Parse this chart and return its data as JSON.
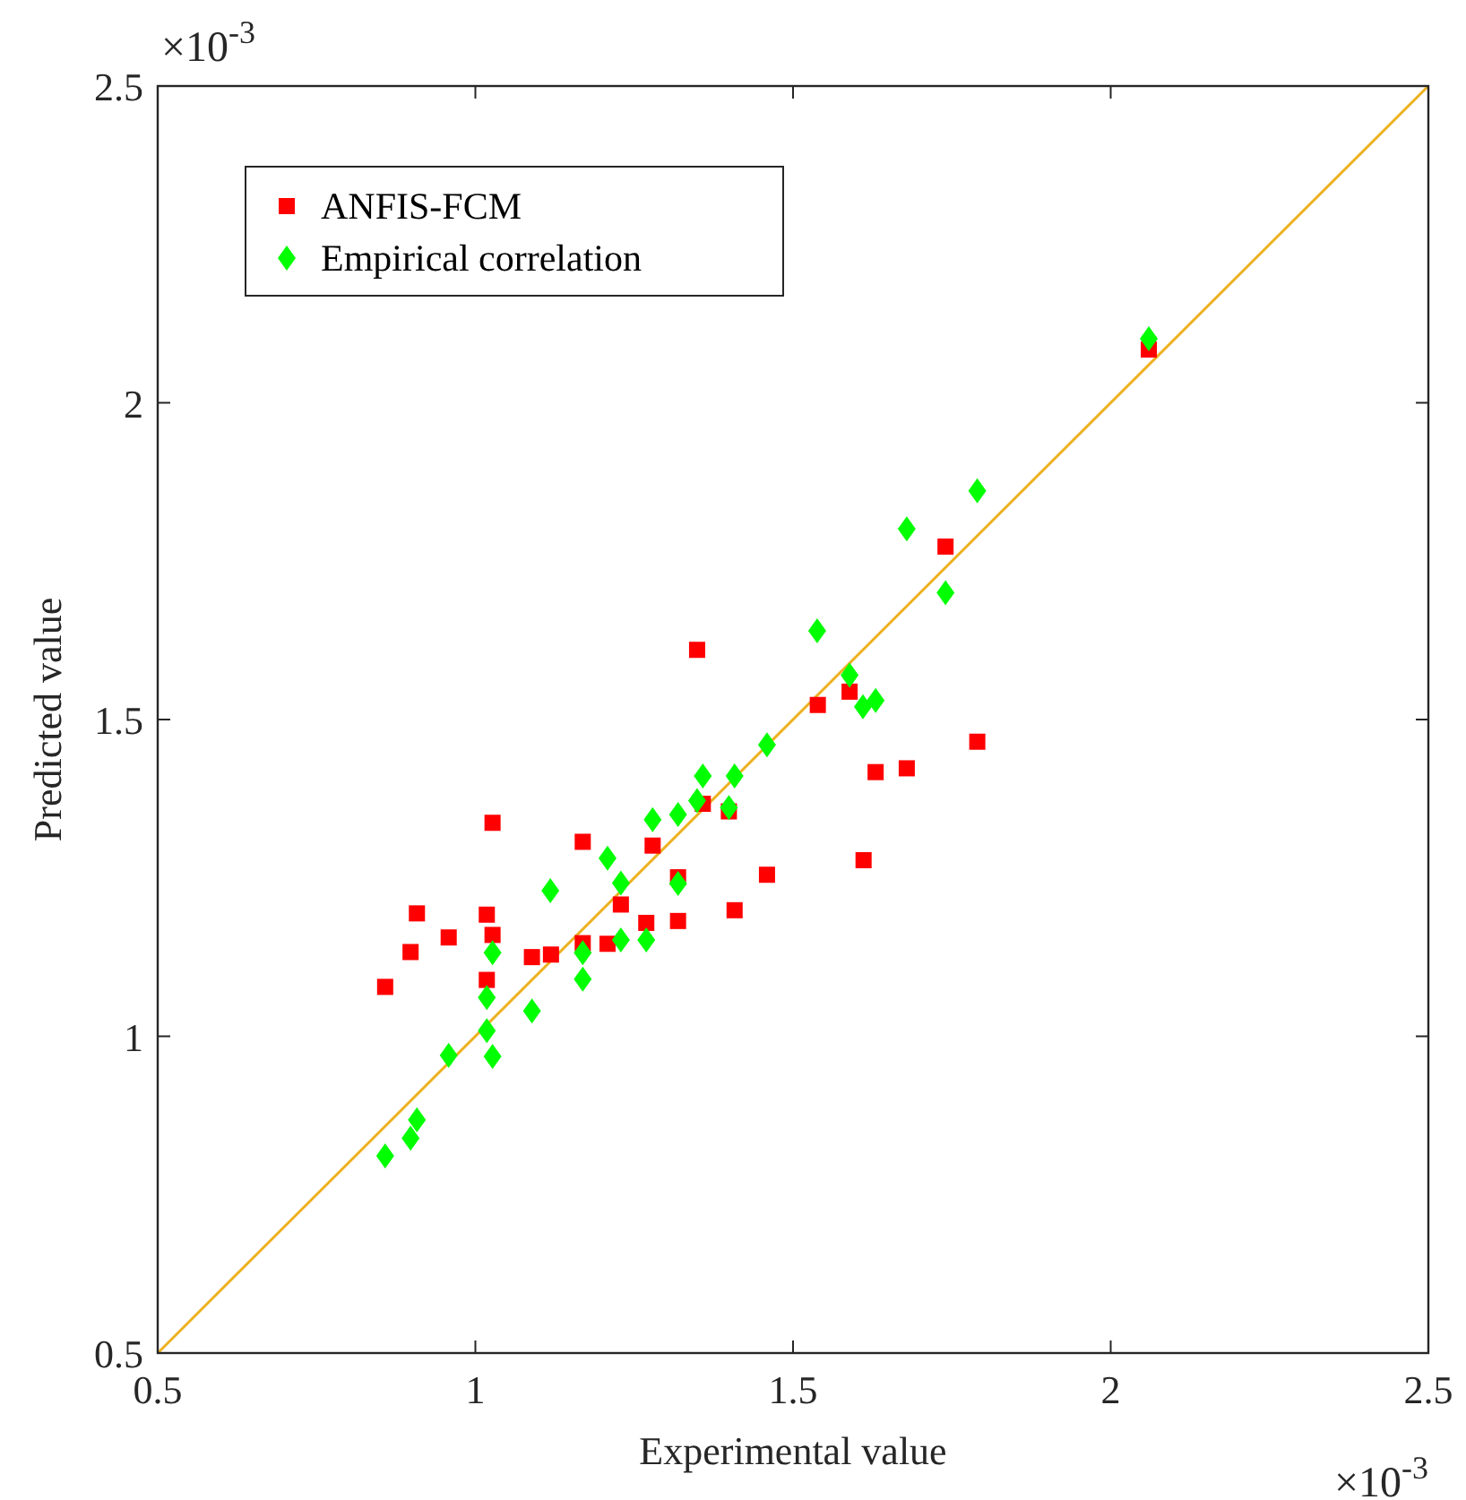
{
  "chart_data": {
    "type": "scatter",
    "xlabel": "Experimental value",
    "ylabel": "Predicted value",
    "xlim": [
      0.5,
      2.5
    ],
    "ylim": [
      0.5,
      2.5
    ],
    "xticks": [
      0.5,
      1,
      1.5,
      2,
      2.5
    ],
    "yticks": [
      0.5,
      1,
      1.5,
      2,
      2.5
    ],
    "grid": false,
    "legend": "top left",
    "annotations": [
      "×10$^{-3}$",
      "×10$^{-3}$"
    ],
    "series": [
      {
        "name": "ANFIS-FCM",
        "color": "#ff0000",
        "marker": "square",
        "x": [
          0.858,
          0.898,
          0.908,
          0.958,
          1.018,
          1.027,
          1.018,
          1.027,
          1.089,
          1.119,
          1.169,
          1.169,
          1.208,
          1.229,
          1.269,
          1.279,
          1.319,
          1.319,
          1.349,
          1.358,
          1.399,
          1.408,
          1.459,
          1.539,
          1.589,
          1.611,
          1.63,
          1.679,
          1.79,
          1.74,
          2.06
        ],
        "values": [
          1.078,
          1.133,
          1.194,
          1.156,
          1.192,
          1.16,
          1.089,
          1.337,
          1.125,
          1.129,
          1.307,
          1.147,
          1.146,
          1.208,
          1.179,
          1.301,
          1.251,
          1.182,
          1.61,
          1.367,
          1.355,
          1.199,
          1.255,
          1.523,
          1.544,
          1.278,
          1.417,
          1.423,
          1.465,
          1.773,
          2.084
        ]
      },
      {
        "name": "Empirical correlation",
        "color": "#00ff00",
        "marker": "diamond",
        "x": [
          0.858,
          0.898,
          0.908,
          0.958,
          1.018,
          1.018,
          1.027,
          1.027,
          1.089,
          1.118,
          1.169,
          1.169,
          1.208,
          1.229,
          1.229,
          1.269,
          1.279,
          1.319,
          1.319,
          1.349,
          1.358,
          1.408,
          1.399,
          1.459,
          1.538,
          1.589,
          1.61,
          1.63,
          1.679,
          1.79,
          1.74,
          2.06
        ],
        "values": [
          0.811,
          0.839,
          0.868,
          0.97,
          1.009,
          1.061,
          0.968,
          1.132,
          1.04,
          1.23,
          1.132,
          1.09,
          1.281,
          1.242,
          1.152,
          1.152,
          1.342,
          1.35,
          1.241,
          1.372,
          1.411,
          1.411,
          1.361,
          1.46,
          1.64,
          1.57,
          1.52,
          1.53,
          1.801,
          1.861,
          1.7,
          2.101
        ]
      },
      {
        "type": "line",
        "color": "#edb120",
        "marker": "none",
        "x": [
          0.5,
          2.5
        ],
        "values": [
          0.5,
          2.5
        ]
      }
    ]
  }
}
